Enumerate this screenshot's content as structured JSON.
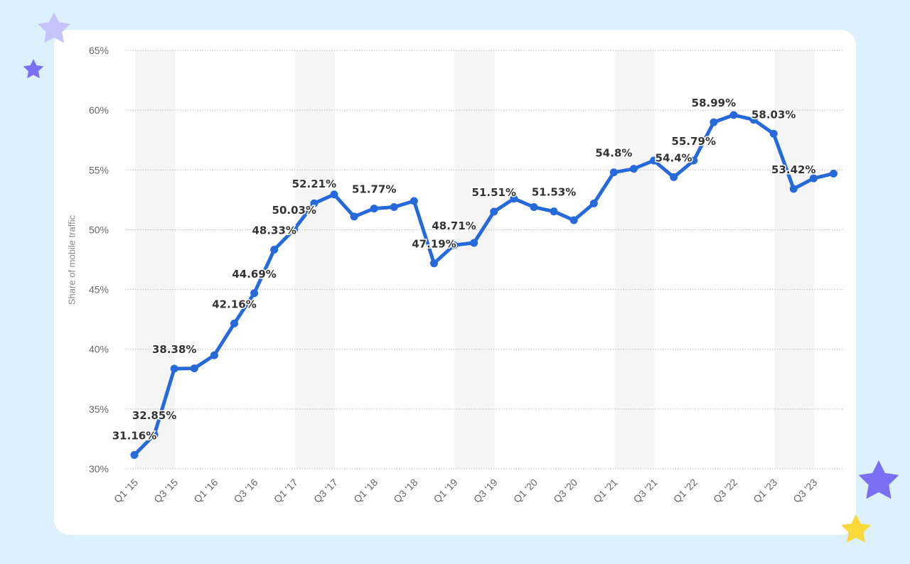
{
  "colors": {
    "background": "#ddf1fc",
    "card": "#ffffff",
    "line": "#2669db",
    "label": "#333333",
    "tick": "#666666",
    "grid": "#bbbbbb",
    "band": "#f5f5f5",
    "star_light": "#c7c3fb",
    "star_purple": "#7b6ff3",
    "star_yellow": "#fcd93b"
  },
  "decorations": [
    "star-light-icon",
    "star-small-purple-icon",
    "star-large-purple-icon",
    "star-yellow-icon"
  ],
  "chart_data": {
    "type": "line",
    "title": "",
    "xlabel": "",
    "ylabel": "Share of mobile traffic",
    "ylim": [
      30,
      65
    ],
    "yticks": [
      30,
      35,
      40,
      45,
      50,
      55,
      60,
      65
    ],
    "ytick_suffix": "%",
    "grid": true,
    "legend": "none",
    "categories": [
      "Q1 '15",
      "Q2 '15",
      "Q3 '15",
      "Q4 '15",
      "Q1 '16",
      "Q2 '16",
      "Q3 '16",
      "Q4 '16",
      "Q1 '17",
      "Q2 '17",
      "Q3 '17",
      "Q4 '17",
      "Q1 '18",
      "Q2 '18",
      "Q3 '18",
      "Q4 '18",
      "Q1 '19",
      "Q2 '19",
      "Q3 '19",
      "Q4 '19",
      "Q1 '20",
      "Q2 '20",
      "Q3 '20",
      "Q4 '20",
      "Q1 '21",
      "Q2 '21",
      "Q3 '21",
      "Q4 '21",
      "Q1 '22",
      "Q2 '22",
      "Q3 '22",
      "Q4 '22",
      "Q1 '23",
      "Q2 '23",
      "Q3 '23",
      "Q4 '23"
    ],
    "xtick_labels": [
      "Q1 '15",
      "Q3 '15",
      "Q1 '16",
      "Q3 '16",
      "Q1 '17",
      "Q3 '17",
      "Q1 '18",
      "Q3 '18",
      "Q1 '19",
      "Q3 '19",
      "Q1 '20",
      "Q3 '20",
      "Q1 '21",
      "Q3 '21",
      "Q1 '22",
      "Q3 '22",
      "Q1 '23",
      "Q3 '23"
    ],
    "series": [
      {
        "values": [
          31.16,
          32.85,
          38.38,
          38.4,
          39.5,
          42.16,
          44.69,
          48.33,
          50.03,
          52.21,
          52.95,
          51.1,
          51.77,
          51.9,
          52.4,
          47.19,
          48.71,
          48.9,
          51.51,
          52.6,
          51.9,
          51.53,
          50.8,
          52.2,
          54.8,
          55.1,
          55.79,
          54.4,
          55.79,
          58.99,
          59.6,
          59.2,
          58.03,
          53.42,
          54.3,
          54.7
        ]
      }
    ],
    "data_labels": [
      {
        "index": 0,
        "text": "31.16%"
      },
      {
        "index": 1,
        "text": "32.85%"
      },
      {
        "index": 2,
        "text": "38.38%"
      },
      {
        "index": 5,
        "text": "42.16%"
      },
      {
        "index": 6,
        "text": "44.69%"
      },
      {
        "index": 7,
        "text": "48.33%"
      },
      {
        "index": 8,
        "text": "50.03%"
      },
      {
        "index": 9,
        "text": "52.21%"
      },
      {
        "index": 12,
        "text": "51.77%"
      },
      {
        "index": 15,
        "text": "47.19%"
      },
      {
        "index": 16,
        "text": "48.71%"
      },
      {
        "index": 18,
        "text": "51.51%"
      },
      {
        "index": 21,
        "text": "51.53%"
      },
      {
        "index": 24,
        "text": "54.8%"
      },
      {
        "index": 27,
        "text": "54.4%"
      },
      {
        "index": 28,
        "text": "55.79%"
      },
      {
        "index": 29,
        "text": "58.99%"
      },
      {
        "index": 32,
        "text": "58.03%"
      },
      {
        "index": 33,
        "text": "53.42%"
      }
    ]
  }
}
